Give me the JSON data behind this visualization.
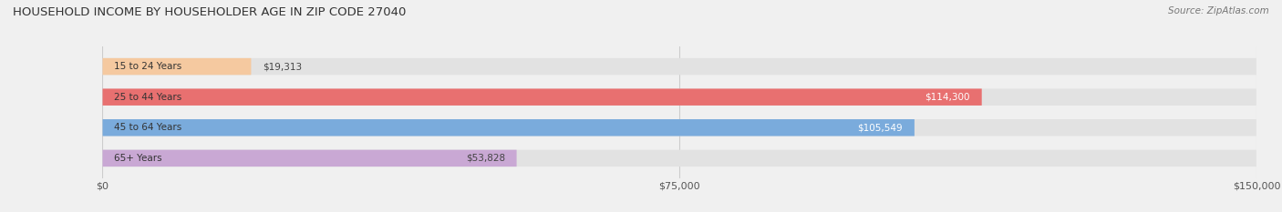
{
  "title": "HOUSEHOLD INCOME BY HOUSEHOLDER AGE IN ZIP CODE 27040",
  "source": "Source: ZipAtlas.com",
  "categories": [
    "15 to 24 Years",
    "25 to 44 Years",
    "45 to 64 Years",
    "65+ Years"
  ],
  "values": [
    19313,
    114300,
    105549,
    53828
  ],
  "bar_colors": [
    "#f5c9a0",
    "#e87070",
    "#7aabdc",
    "#c9a8d4"
  ],
  "label_colors": [
    "#444444",
    "#ffffff",
    "#ffffff",
    "#444444"
  ],
  "background_color": "#f0f0f0",
  "bar_bg_color": "#e2e2e2",
  "xlim": [
    0,
    150000
  ],
  "xticks": [
    0,
    75000,
    150000
  ],
  "xtick_labels": [
    "$0",
    "$75,000",
    "$150,000"
  ],
  "bar_height": 0.55,
  "figsize": [
    14.06,
    2.33
  ],
  "dpi": 100
}
